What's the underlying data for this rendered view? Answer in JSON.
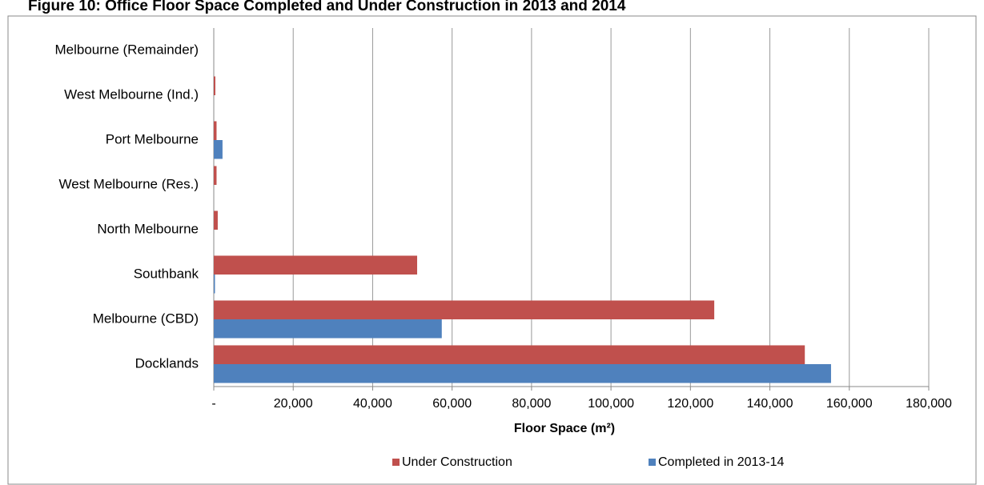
{
  "chart_data": {
    "type": "hbar",
    "title": "Figure 10:  Office Floor Space Completed and Under Construction in 2013 and 2014",
    "x_label": "Floor Space (m²)",
    "categories": [
      "Melbourne (Remainder)",
      "West Melbourne (Ind.)",
      "Port Melbourne",
      "West Melbourne (Res.)",
      "North Melbourne",
      "Southbank",
      "Melbourne (CBD)",
      "Docklands"
    ],
    "series": [
      {
        "name": "Under Construction",
        "color": "#c0504d",
        "values": [
          0,
          400,
          700,
          700,
          1000,
          51200,
          126000,
          148800
        ]
      },
      {
        "name": "Completed in 2013-14",
        "color": "#4f81bd",
        "values": [
          0,
          0,
          2200,
          0,
          0,
          300,
          57400,
          155400
        ]
      }
    ],
    "xlim": [
      0,
      180000
    ],
    "xticks": [
      {
        "value": 0,
        "label": "-"
      },
      {
        "value": 20000,
        "label": "20,000"
      },
      {
        "value": 40000,
        "label": "40,000"
      },
      {
        "value": 60000,
        "label": "60,000"
      },
      {
        "value": 80000,
        "label": "80,000"
      },
      {
        "value": 100000,
        "label": "100,000"
      },
      {
        "value": 120000,
        "label": "120,000"
      },
      {
        "value": 140000,
        "label": "140,000"
      },
      {
        "value": 160000,
        "label": "160,000"
      },
      {
        "value": 180000,
        "label": "180,000"
      }
    ],
    "grid": true,
    "legend": "bottom"
  }
}
